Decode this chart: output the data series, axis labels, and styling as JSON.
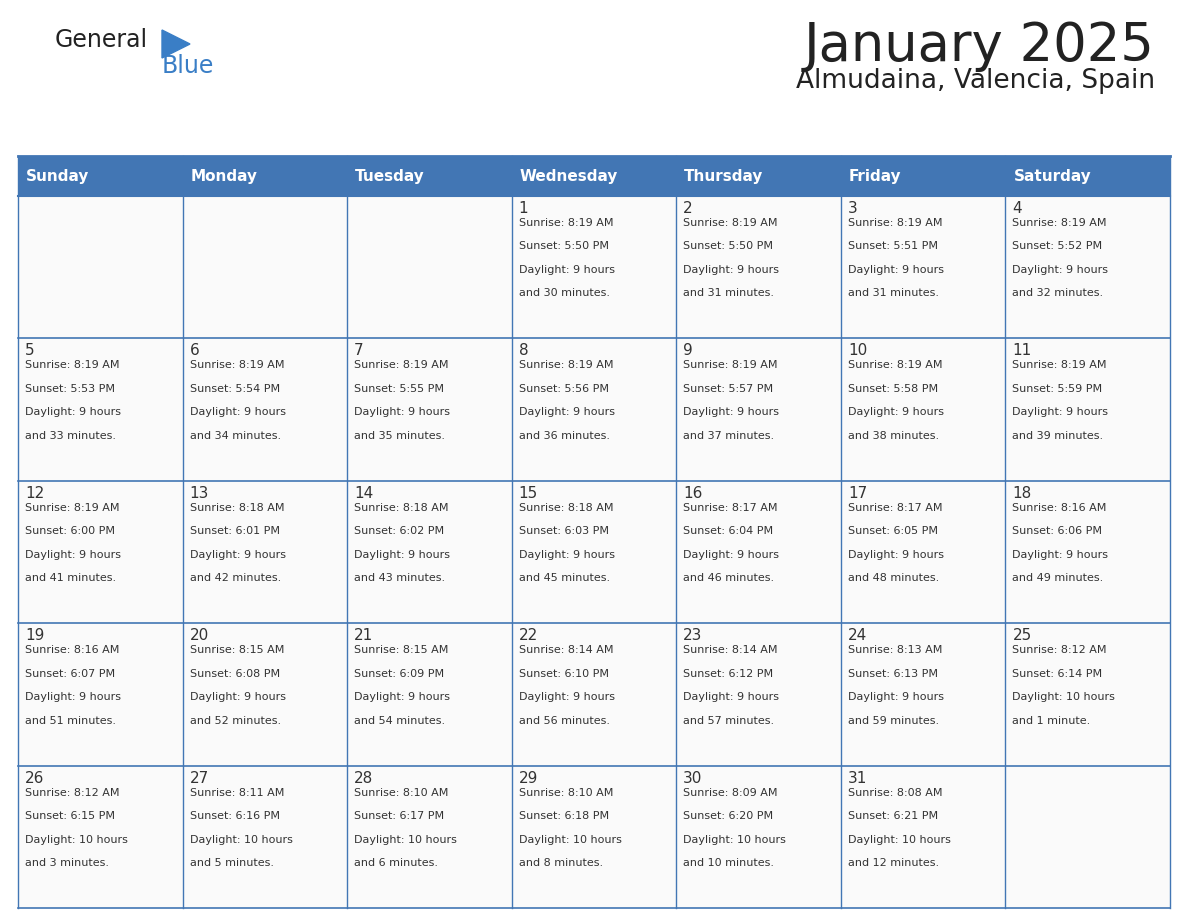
{
  "title": "January 2025",
  "subtitle": "Almudaina, Valencia, Spain",
  "header_color": "#4276B4",
  "header_text_color": "#FFFFFF",
  "day_names": [
    "Sunday",
    "Monday",
    "Tuesday",
    "Wednesday",
    "Thursday",
    "Friday",
    "Saturday"
  ],
  "background_color": "#FFFFFF",
  "line_color": "#4276B4",
  "text_color": "#333333",
  "logo_general_color": "#222222",
  "logo_blue_color": "#3A7EC6",
  "logo_triangle_color": "#3A7EC6",
  "title_color": "#222222",
  "days": [
    {
      "day": 1,
      "col": 3,
      "row": 0,
      "sunrise": "8:19 AM",
      "sunset": "5:50 PM",
      "daylight": "9 hours and 30 minutes."
    },
    {
      "day": 2,
      "col": 4,
      "row": 0,
      "sunrise": "8:19 AM",
      "sunset": "5:50 PM",
      "daylight": "9 hours and 31 minutes."
    },
    {
      "day": 3,
      "col": 5,
      "row": 0,
      "sunrise": "8:19 AM",
      "sunset": "5:51 PM",
      "daylight": "9 hours and 31 minutes."
    },
    {
      "day": 4,
      "col": 6,
      "row": 0,
      "sunrise": "8:19 AM",
      "sunset": "5:52 PM",
      "daylight": "9 hours and 32 minutes."
    },
    {
      "day": 5,
      "col": 0,
      "row": 1,
      "sunrise": "8:19 AM",
      "sunset": "5:53 PM",
      "daylight": "9 hours and 33 minutes."
    },
    {
      "day": 6,
      "col": 1,
      "row": 1,
      "sunrise": "8:19 AM",
      "sunset": "5:54 PM",
      "daylight": "9 hours and 34 minutes."
    },
    {
      "day": 7,
      "col": 2,
      "row": 1,
      "sunrise": "8:19 AM",
      "sunset": "5:55 PM",
      "daylight": "9 hours and 35 minutes."
    },
    {
      "day": 8,
      "col": 3,
      "row": 1,
      "sunrise": "8:19 AM",
      "sunset": "5:56 PM",
      "daylight": "9 hours and 36 minutes."
    },
    {
      "day": 9,
      "col": 4,
      "row": 1,
      "sunrise": "8:19 AM",
      "sunset": "5:57 PM",
      "daylight": "9 hours and 37 minutes."
    },
    {
      "day": 10,
      "col": 5,
      "row": 1,
      "sunrise": "8:19 AM",
      "sunset": "5:58 PM",
      "daylight": "9 hours and 38 minutes."
    },
    {
      "day": 11,
      "col": 6,
      "row": 1,
      "sunrise": "8:19 AM",
      "sunset": "5:59 PM",
      "daylight": "9 hours and 39 minutes."
    },
    {
      "day": 12,
      "col": 0,
      "row": 2,
      "sunrise": "8:19 AM",
      "sunset": "6:00 PM",
      "daylight": "9 hours and 41 minutes."
    },
    {
      "day": 13,
      "col": 1,
      "row": 2,
      "sunrise": "8:18 AM",
      "sunset": "6:01 PM",
      "daylight": "9 hours and 42 minutes."
    },
    {
      "day": 14,
      "col": 2,
      "row": 2,
      "sunrise": "8:18 AM",
      "sunset": "6:02 PM",
      "daylight": "9 hours and 43 minutes."
    },
    {
      "day": 15,
      "col": 3,
      "row": 2,
      "sunrise": "8:18 AM",
      "sunset": "6:03 PM",
      "daylight": "9 hours and 45 minutes."
    },
    {
      "day": 16,
      "col": 4,
      "row": 2,
      "sunrise": "8:17 AM",
      "sunset": "6:04 PM",
      "daylight": "9 hours and 46 minutes."
    },
    {
      "day": 17,
      "col": 5,
      "row": 2,
      "sunrise": "8:17 AM",
      "sunset": "6:05 PM",
      "daylight": "9 hours and 48 minutes."
    },
    {
      "day": 18,
      "col": 6,
      "row": 2,
      "sunrise": "8:16 AM",
      "sunset": "6:06 PM",
      "daylight": "9 hours and 49 minutes."
    },
    {
      "day": 19,
      "col": 0,
      "row": 3,
      "sunrise": "8:16 AM",
      "sunset": "6:07 PM",
      "daylight": "9 hours and 51 minutes."
    },
    {
      "day": 20,
      "col": 1,
      "row": 3,
      "sunrise": "8:15 AM",
      "sunset": "6:08 PM",
      "daylight": "9 hours and 52 minutes."
    },
    {
      "day": 21,
      "col": 2,
      "row": 3,
      "sunrise": "8:15 AM",
      "sunset": "6:09 PM",
      "daylight": "9 hours and 54 minutes."
    },
    {
      "day": 22,
      "col": 3,
      "row": 3,
      "sunrise": "8:14 AM",
      "sunset": "6:10 PM",
      "daylight": "9 hours and 56 minutes."
    },
    {
      "day": 23,
      "col": 4,
      "row": 3,
      "sunrise": "8:14 AM",
      "sunset": "6:12 PM",
      "daylight": "9 hours and 57 minutes."
    },
    {
      "day": 24,
      "col": 5,
      "row": 3,
      "sunrise": "8:13 AM",
      "sunset": "6:13 PM",
      "daylight": "9 hours and 59 minutes."
    },
    {
      "day": 25,
      "col": 6,
      "row": 3,
      "sunrise": "8:12 AM",
      "sunset": "6:14 PM",
      "daylight": "10 hours and 1 minute."
    },
    {
      "day": 26,
      "col": 0,
      "row": 4,
      "sunrise": "8:12 AM",
      "sunset": "6:15 PM",
      "daylight": "10 hours and 3 minutes."
    },
    {
      "day": 27,
      "col": 1,
      "row": 4,
      "sunrise": "8:11 AM",
      "sunset": "6:16 PM",
      "daylight": "10 hours and 5 minutes."
    },
    {
      "day": 28,
      "col": 2,
      "row": 4,
      "sunrise": "8:10 AM",
      "sunset": "6:17 PM",
      "daylight": "10 hours and 6 minutes."
    },
    {
      "day": 29,
      "col": 3,
      "row": 4,
      "sunrise": "8:10 AM",
      "sunset": "6:18 PM",
      "daylight": "10 hours and 8 minutes."
    },
    {
      "day": 30,
      "col": 4,
      "row": 4,
      "sunrise": "8:09 AM",
      "sunset": "6:20 PM",
      "daylight": "10 hours and 10 minutes."
    },
    {
      "day": 31,
      "col": 5,
      "row": 4,
      "sunrise": "8:08 AM",
      "sunset": "6:21 PM",
      "daylight": "10 hours and 12 minutes."
    }
  ]
}
